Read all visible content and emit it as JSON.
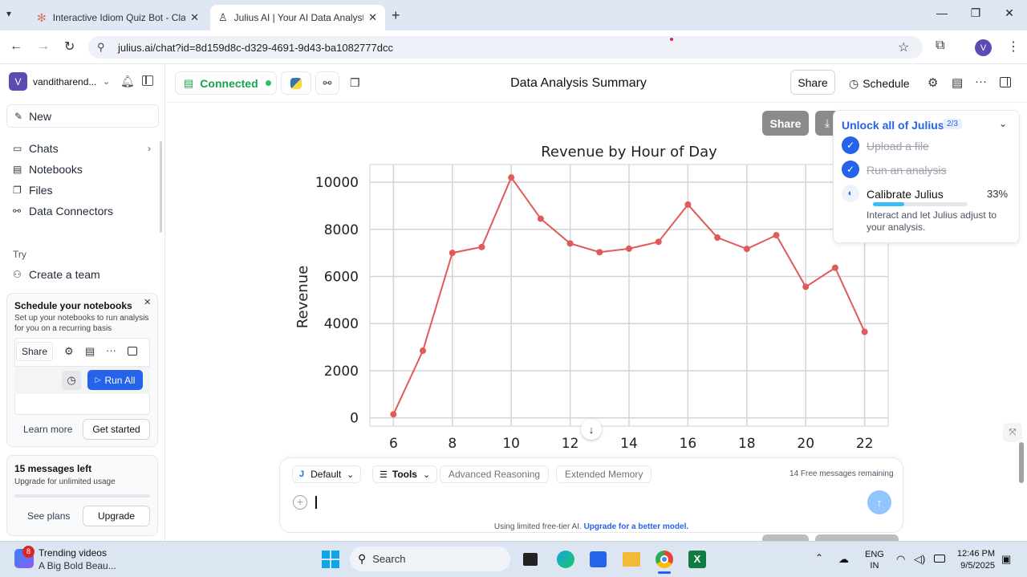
{
  "browser": {
    "tabs": [
      {
        "title": "Interactive Idiom Quiz Bot - Cla",
        "active": false
      },
      {
        "title": "Julius AI | Your AI Data Analyst",
        "active": true
      }
    ],
    "url": "julius.ai/chat?id=8d159d8c-d329-4691-9d43-ba1082777dcc",
    "profile_initial": "V"
  },
  "sidebar": {
    "user_initial": "V",
    "user_name": "vanditharend...",
    "new_label": "New",
    "items": [
      "Chats",
      "Notebooks",
      "Files",
      "Data Connectors"
    ],
    "try_label": "Try",
    "create_team": "Create a team",
    "schedule_card": {
      "title": "Schedule your notebooks",
      "desc": "Set up your notebooks to run analysis for you on a recurring basis",
      "share": "Share",
      "run_all": "Run All",
      "learn_more": "Learn more",
      "get_started": "Get started"
    },
    "messages_card": {
      "title": "15 messages left",
      "desc": "Upgrade for unlimited usage",
      "see_plans": "See plans",
      "upgrade": "Upgrade"
    }
  },
  "topbar": {
    "connected": "Connected",
    "title": "Data Analysis Summary",
    "share": "Share",
    "schedule": "Schedule"
  },
  "chart_actions": {
    "share": "Share"
  },
  "onboarding": {
    "title": "Unlock all of Julius",
    "progress": "2/3",
    "steps": [
      {
        "label": "Upload a file",
        "done": true
      },
      {
        "label": "Run an analysis",
        "done": true
      },
      {
        "label": "Calibrate Julius",
        "done": false,
        "percent": "33%",
        "desc": "Interact and let Julius adjust to your analysis."
      }
    ]
  },
  "chart_data": {
    "type": "line",
    "title": "Revenue by Hour of Day",
    "ylabel": "Revenue",
    "xlabel": "",
    "x": [
      6,
      7,
      8,
      9,
      10,
      11,
      12,
      13,
      14,
      15,
      16,
      17,
      18,
      19,
      20,
      21,
      22
    ],
    "values": [
      150,
      2850,
      7000,
      7250,
      10200,
      8450,
      7400,
      7030,
      7180,
      7470,
      9050,
      7650,
      7170,
      7750,
      5560,
      6370,
      3650
    ],
    "xticks": [
      6,
      8,
      10,
      12,
      14,
      16,
      18,
      20,
      22
    ],
    "yticks": [
      0,
      2000,
      4000,
      6000,
      8000,
      10000
    ],
    "xlim": [
      5.2,
      22.8
    ],
    "ylim": [
      -350,
      10750
    ],
    "grid": true,
    "color": "#e05a5a"
  },
  "composer": {
    "model": "Default",
    "tools": "Tools",
    "advanced": "Advanced Reasoning",
    "extended": "Extended Memory",
    "remaining_count": "14",
    "remaining_text": "Free messages remaining",
    "footer_text": "Using limited free-tier AI.",
    "footer_link": "Upgrade for a better model."
  },
  "taskbar": {
    "badge": "8",
    "news_title": "Trending videos",
    "news_sub": "A Big Bold Beau...",
    "search": "Search",
    "lang1": "ENG",
    "lang2": "IN",
    "time": "12:46 PM",
    "date": "9/5/2025"
  }
}
